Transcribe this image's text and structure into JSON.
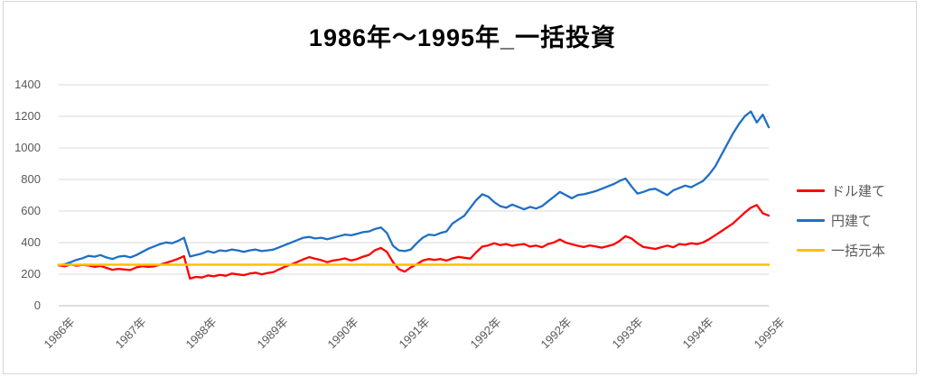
{
  "title": "1986年〜1995年_一括投資",
  "chart_data": {
    "type": "line",
    "title": "1986年〜1995年_一括投資",
    "x_unit": "month",
    "x_span": [
      "1986年",
      "1995年"
    ],
    "xtick_labels": [
      "1986年",
      "1987年",
      "1988年",
      "1989年",
      "1990年",
      "1991年",
      "1992年",
      "1992年",
      "1993年",
      "1994年",
      "1995年"
    ],
    "yticks": [
      0,
      200,
      400,
      600,
      800,
      1000,
      1200,
      1400
    ],
    "ylim": [
      0,
      1400
    ],
    "grid": "horizontal",
    "grid_color": "#dadada",
    "axis_text_color": "#595959",
    "legend_position": "right",
    "series": [
      {
        "name": "ドル建て",
        "key": "dollar",
        "color": "#ff0000",
        "values": [
          256,
          250,
          261,
          254,
          259,
          255,
          247,
          252,
          240,
          228,
          234,
          230,
          226,
          243,
          251,
          246,
          249,
          261,
          272,
          284,
          298,
          314,
          172,
          183,
          179,
          192,
          186,
          196,
          190,
          204,
          199,
          194,
          204,
          209,
          199,
          207,
          214,
          232,
          248,
          262,
          278,
          294,
          308,
          298,
          289,
          276,
          286,
          292,
          300,
          287,
          296,
          311,
          322,
          352,
          366,
          341,
          278,
          232,
          216,
          243,
          262,
          286,
          296,
          291,
          296,
          286,
          300,
          309,
          304,
          299,
          340,
          375,
          382,
          396,
          384,
          391,
          380,
          386,
          391,
          375,
          381,
          371,
          391,
          401,
          420,
          400,
          390,
          380,
          372,
          382,
          376,
          368,
          378,
          388,
          411,
          441,
          426,
          396,
          372,
          366,
          360,
          371,
          381,
          371,
          391,
          386,
          396,
          391,
          401,
          421,
          446,
          471,
          496,
          521,
          556,
          591,
          621,
          638,
          586,
          571
        ]
      },
      {
        "name": "円建て",
        "key": "yen",
        "color": "#1f6fc5",
        "values": [
          256,
          263,
          276,
          291,
          301,
          316,
          311,
          321,
          306,
          296,
          311,
          316,
          306,
          321,
          341,
          361,
          376,
          391,
          401,
          396,
          411,
          431,
          312,
          321,
          331,
          346,
          336,
          351,
          346,
          356,
          351,
          341,
          351,
          356,
          346,
          351,
          356,
          371,
          386,
          401,
          416,
          431,
          436,
          426,
          431,
          421,
          431,
          441,
          451,
          446,
          456,
          466,
          471,
          486,
          496,
          461,
          381,
          351,
          346,
          356,
          396,
          431,
          451,
          446,
          461,
          471,
          521,
          546,
          571,
          621,
          671,
          706,
          691,
          656,
          631,
          621,
          641,
          626,
          611,
          626,
          616,
          631,
          661,
          691,
          721,
          701,
          681,
          701,
          706,
          716,
          726,
          741,
          756,
          771,
          791,
          806,
          756,
          711,
          721,
          736,
          741,
          721,
          701,
          731,
          746,
          761,
          751,
          771,
          791,
          831,
          881,
          951,
          1021,
          1091,
          1151,
          1201,
          1231,
          1161,
          1211,
          1131
        ]
      },
      {
        "name": "一括元本",
        "key": "principal",
        "color": "#ffc000",
        "constant_value": 260
      }
    ]
  }
}
